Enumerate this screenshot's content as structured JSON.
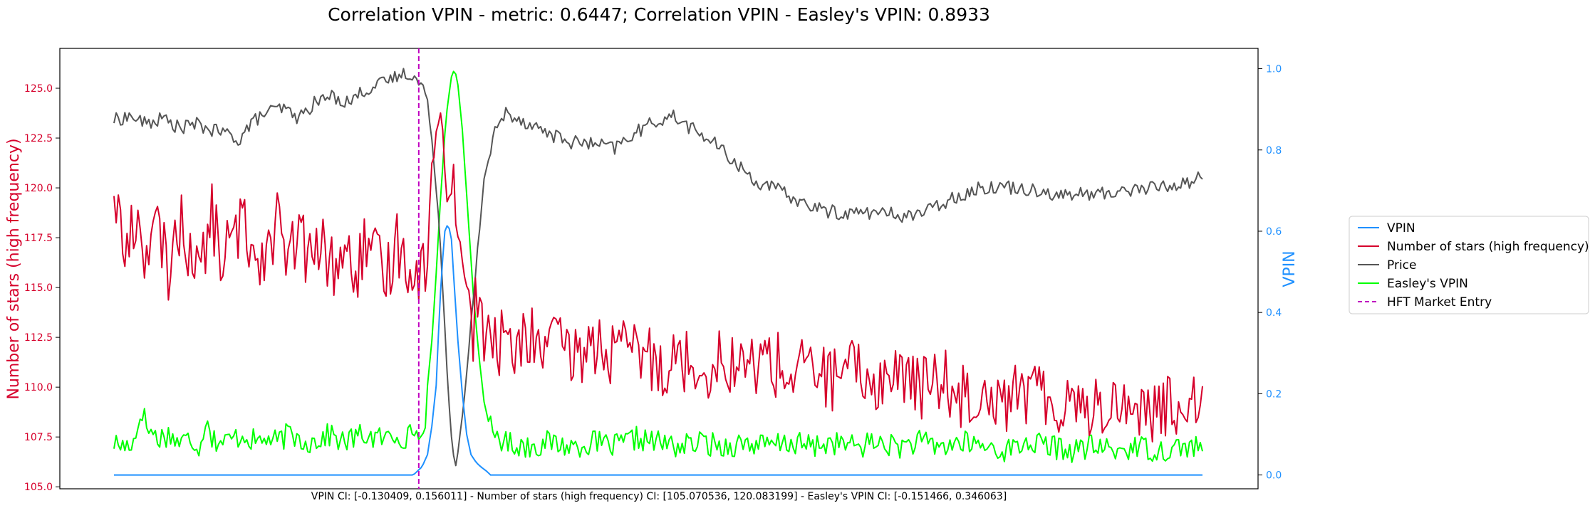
{
  "chart_data": {
    "type": "line",
    "title": "Correlation VPIN - metric: 0.6447; Correlation VPIN - Easley's VPIN: 0.8933",
    "caption": "VPIN CI: [-0.130409, 0.156011] - Number of stars (high frequency) CI: [105.070536, 120.083199] - Easley's VPIN CI: [-0.151466, 0.346063]",
    "ylabel_left": "Number of stars (high frequency)",
    "ylabel_right": "VPIN",
    "ylim_left": [
      104.9,
      127.0
    ],
    "ylim_right": [
      -0.034,
      1.05
    ],
    "yticks_left": [
      "105.0",
      "107.5",
      "110.0",
      "112.5",
      "115.0",
      "117.5",
      "120.0",
      "122.5",
      "125.0"
    ],
    "yticks_right": [
      "0.0",
      "0.2",
      "0.4",
      "0.6",
      "0.8",
      "1.0"
    ],
    "x_range": [
      0,
      1000
    ],
    "hft_market_entry_x": 280,
    "grid": false,
    "legend_position": "right, outside plot",
    "legend": [
      {
        "label": "VPIN",
        "color": "#1e90ff",
        "style": "solid"
      },
      {
        "label": "Number of stars (high frequency)",
        "color": "#d6002b",
        "style": "solid"
      },
      {
        "label": "Price",
        "color": "#555555",
        "style": "solid"
      },
      {
        "label": "Easley's VPIN",
        "color": "#00ff00",
        "style": "solid"
      },
      {
        "label": "HFT Market Entry",
        "color": "#c000c0",
        "style": "dashed"
      }
    ],
    "series": [
      {
        "name": "VPIN",
        "axis": "right",
        "color": "#1e90ff",
        "x": [
          0,
          275,
          283,
          288,
          292,
          296,
          299,
          301,
          304,
          307,
          310,
          313,
          316,
          320,
          324,
          328,
          333,
          337,
          342,
          346,
          1000
        ],
        "y": [
          0.0,
          0.0,
          0.02,
          0.05,
          0.12,
          0.22,
          0.4,
          0.5,
          0.6,
          0.62,
          0.58,
          0.45,
          0.33,
          0.2,
          0.1,
          0.05,
          0.03,
          0.02,
          0.01,
          0.0,
          0.0
        ]
      },
      {
        "name": "Number of stars (high frequency)",
        "axis": "left",
        "color": "#d6002b",
        "x": [
          0,
          10,
          20,
          30,
          40,
          50,
          60,
          70,
          80,
          90,
          100,
          110,
          120,
          130,
          140,
          150,
          160,
          170,
          180,
          190,
          200,
          210,
          220,
          230,
          240,
          250,
          260,
          270,
          280,
          285,
          290,
          295,
          300,
          305,
          310,
          315,
          320,
          325,
          330,
          335,
          340,
          350,
          360,
          370,
          380,
          390,
          400,
          420,
          440,
          460,
          480,
          500,
          520,
          540,
          560,
          580,
          600,
          620,
          640,
          660,
          680,
          700,
          720,
          740,
          760,
          780,
          800,
          820,
          840,
          860,
          880,
          900,
          920,
          940,
          960,
          980,
          1000
        ],
        "y": [
          120.2,
          116.5,
          118.5,
          116.8,
          117.8,
          116.0,
          118.2,
          117.0,
          115.8,
          118.6,
          116.4,
          117.5,
          118.2,
          116.6,
          117.0,
          118.4,
          116.0,
          117.8,
          116.2,
          117.2,
          116.0,
          116.8,
          115.6,
          116.9,
          116.3,
          115.5,
          117.4,
          116.2,
          116.0,
          115.6,
          119.0,
          121.8,
          123.8,
          120.5,
          121.0,
          118.6,
          116.6,
          114.5,
          113.0,
          115.0,
          112.4,
          112.0,
          112.6,
          111.5,
          112.8,
          111.9,
          112.4,
          111.4,
          112.2,
          111.6,
          111.9,
          111.2,
          111.5,
          111.0,
          111.4,
          110.9,
          111.5,
          110.6,
          111.0,
          110.4,
          110.8,
          110.2,
          110.7,
          110.0,
          110.4,
          109.6,
          110.0,
          109.4,
          109.9,
          109.2,
          109.6,
          108.9,
          109.3,
          109.0,
          108.7,
          109.2,
          110.0
        ]
      },
      {
        "name": "Price",
        "axis": "left",
        "color": "#555555",
        "x": [
          0,
          15,
          30,
          45,
          60,
          75,
          90,
          105,
          115,
          125,
          140,
          155,
          170,
          185,
          200,
          215,
          230,
          245,
          260,
          270,
          278,
          285,
          290,
          295,
          300,
          305,
          310,
          315,
          320,
          325,
          330,
          335,
          340,
          350,
          360,
          375,
          390,
          405,
          420,
          440,
          460,
          480,
          500,
          515,
          530,
          550,
          570,
          590,
          610,
          630,
          650,
          670,
          690,
          710,
          730,
          750,
          770,
          790,
          810,
          830,
          850,
          870,
          890,
          910,
          930,
          950,
          970,
          990,
          1000
        ],
        "y": [
          123.4,
          123.6,
          123.2,
          123.5,
          123.0,
          123.2,
          122.9,
          122.7,
          122.4,
          123.2,
          123.8,
          124.0,
          123.5,
          124.3,
          124.6,
          124.3,
          124.9,
          125.2,
          125.6,
          125.8,
          125.4,
          125.0,
          123.5,
          121.0,
          117.0,
          112.0,
          107.5,
          106.0,
          108.5,
          111.0,
          114.5,
          117.5,
          120.5,
          122.8,
          123.8,
          123.4,
          123.0,
          122.6,
          122.3,
          122.2,
          122.0,
          122.8,
          123.4,
          123.6,
          123.0,
          122.3,
          121.3,
          120.3,
          119.9,
          119.3,
          118.9,
          118.7,
          118.8,
          118.7,
          118.6,
          118.9,
          119.5,
          119.9,
          120.1,
          120.0,
          119.9,
          119.6,
          119.7,
          119.7,
          119.9,
          120.0,
          120.1,
          120.3,
          120.7
        ]
      },
      {
        "name": "Easley's VPIN",
        "axis": "right",
        "color": "#00ff00",
        "x": [
          0,
          10,
          20,
          25,
          30,
          40,
          50,
          60,
          70,
          80,
          85,
          90,
          100,
          110,
          120,
          130,
          140,
          150,
          160,
          170,
          180,
          190,
          200,
          210,
          220,
          230,
          240,
          250,
          260,
          270,
          276,
          280,
          285,
          290,
          295,
          300,
          305,
          310,
          313,
          316,
          320,
          325,
          330,
          335,
          340,
          345,
          350,
          360,
          380,
          400,
          420,
          440,
          460,
          480,
          500,
          520,
          540,
          560,
          580,
          600,
          620,
          640,
          660,
          680,
          700,
          720,
          740,
          760,
          780,
          800,
          820,
          840,
          860,
          880,
          900,
          920,
          940,
          960,
          980,
          1000
        ],
        "y": [
          0.08,
          0.07,
          0.09,
          0.17,
          0.12,
          0.09,
          0.1,
          0.08,
          0.09,
          0.07,
          0.16,
          0.09,
          0.08,
          0.09,
          0.1,
          0.08,
          0.09,
          0.08,
          0.1,
          0.09,
          0.08,
          0.09,
          0.1,
          0.08,
          0.09,
          0.1,
          0.09,
          0.09,
          0.1,
          0.09,
          0.12,
          0.08,
          0.12,
          0.25,
          0.45,
          0.68,
          0.88,
          0.98,
          1.0,
          0.96,
          0.85,
          0.65,
          0.45,
          0.3,
          0.18,
          0.12,
          0.1,
          0.08,
          0.07,
          0.08,
          0.07,
          0.08,
          0.07,
          0.09,
          0.08,
          0.07,
          0.08,
          0.07,
          0.08,
          0.07,
          0.08,
          0.07,
          0.08,
          0.07,
          0.08,
          0.07,
          0.08,
          0.07,
          0.08,
          0.07,
          0.06,
          0.08,
          0.07,
          0.06,
          0.07,
          0.06,
          0.07,
          0.06,
          0.07,
          0.07
        ]
      }
    ]
  }
}
